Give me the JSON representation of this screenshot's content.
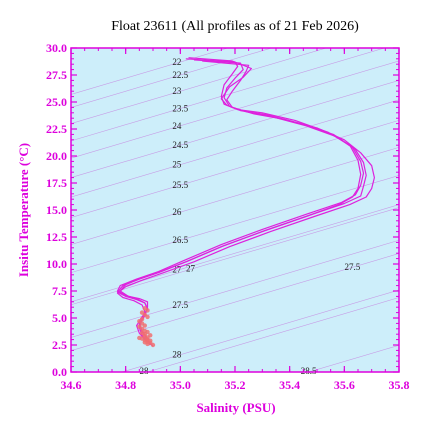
{
  "chart_data": {
    "type": "line",
    "title": "Float 23611  (All profiles as of 21 Feb 2026)",
    "xlabel": "Salinity (PSU)",
    "ylabel": "Insitu Temperature (°C)",
    "xlim": [
      34.6,
      35.8
    ],
    "ylim": [
      0.0,
      30.0
    ],
    "x_ticks": [
      "34.6",
      "34.8",
      "35.0",
      "35.2",
      "35.4",
      "35.6",
      "35.8"
    ],
    "y_ticks": [
      "0.0",
      "2.5",
      "5.0",
      "7.5",
      "10.0",
      "12.5",
      "15.0",
      "17.5",
      "20.0",
      "22.5",
      "25.0",
      "27.5",
      "30.0"
    ],
    "grid": false,
    "colors": {
      "axis": "#dd00dd",
      "plot_background": "#cdeefa",
      "profile_line": "#dd22dd",
      "deep_points": "#f07070",
      "isopycnal": "#c79ce6"
    },
    "isopycnal_labels": [
      {
        "text": "22",
        "s": 35.0,
        "t": 28.7
      },
      {
        "text": "22.5",
        "s": 35.0,
        "t": 27.5
      },
      {
        "text": "23",
        "s": 35.0,
        "t": 26.0
      },
      {
        "text": "23.5",
        "s": 35.0,
        "t": 24.4
      },
      {
        "text": "24",
        "s": 35.0,
        "t": 22.8
      },
      {
        "text": "24.5",
        "s": 35.0,
        "t": 21.0
      },
      {
        "text": "25",
        "s": 35.0,
        "t": 19.2
      },
      {
        "text": "25.5",
        "s": 35.0,
        "t": 17.3
      },
      {
        "text": "26",
        "s": 35.0,
        "t": 14.8
      },
      {
        "text": "26.5",
        "s": 35.0,
        "t": 12.2
      },
      {
        "text": "27",
        "s": 35.0,
        "t": 9.5
      },
      {
        "text": "27",
        "s": 35.05,
        "t": 9.6
      },
      {
        "text": "27.5",
        "s": 35.63,
        "t": 9.7
      },
      {
        "text": "27.5",
        "s": 35.0,
        "t": 6.2
      },
      {
        "text": "28",
        "s": 35.0,
        "t": 1.6
      },
      {
        "text": "28",
        "s": 34.88,
        "t": 0.0
      },
      {
        "text": "28.5",
        "s": 35.47,
        "t": 0.0
      }
    ],
    "series": [
      {
        "s": [
          35.02,
          35.2,
          35.21,
          35.19,
          35.16,
          35.15,
          35.16,
          35.21,
          35.3,
          35.42,
          35.54,
          35.62,
          35.65,
          35.66,
          35.65,
          35.63,
          35.58,
          35.46,
          35.3,
          35.15,
          35.02,
          34.92,
          34.85,
          34.8,
          34.78,
          34.81,
          34.85,
          34.88,
          34.88,
          34.87,
          34.85,
          34.86,
          34.88,
          34.89
        ],
        "t": [
          29.0,
          28.7,
          28.3,
          27.6,
          26.6,
          25.5,
          24.8,
          24.3,
          24.0,
          23.3,
          22.2,
          21.0,
          19.6,
          18.3,
          17.0,
          16.2,
          15.5,
          14.4,
          13.0,
          11.6,
          10.2,
          9.2,
          8.6,
          8.1,
          7.5,
          7.0,
          6.8,
          6.5,
          6.0,
          5.3,
          4.5,
          3.8,
          3.1,
          2.6
        ]
      },
      {
        "s": [
          35.05,
          35.22,
          35.23,
          35.2,
          35.17,
          35.16,
          35.18,
          35.24,
          35.34,
          35.46,
          35.57,
          35.64,
          35.67,
          35.68,
          35.67,
          35.66,
          35.6,
          35.47,
          35.31,
          35.16,
          35.03,
          34.93,
          34.85,
          34.79,
          34.77,
          34.8,
          34.84,
          34.87,
          34.88,
          34.86,
          34.84,
          34.85,
          34.87,
          34.89
        ],
        "t": [
          28.9,
          28.6,
          28.0,
          27.2,
          26.3,
          25.4,
          24.6,
          24.1,
          23.6,
          22.8,
          21.8,
          20.6,
          19.4,
          18.2,
          17.2,
          16.3,
          15.6,
          14.5,
          13.1,
          11.7,
          10.3,
          9.3,
          8.6,
          8.0,
          7.4,
          7.0,
          6.7,
          6.4,
          5.8,
          5.1,
          4.3,
          3.6,
          3.0,
          2.5
        ]
      },
      {
        "s": [
          35.08,
          35.25,
          35.24,
          35.22,
          35.19,
          35.17,
          35.19,
          35.27,
          35.38,
          35.5,
          35.6,
          35.66,
          35.7,
          35.71,
          35.7,
          35.68,
          35.62,
          35.49,
          35.33,
          35.18,
          35.05,
          34.94,
          34.86,
          34.8,
          34.77,
          34.79,
          34.83,
          34.86,
          34.87,
          34.86,
          34.85,
          34.86,
          34.88,
          34.9
        ],
        "t": [
          28.8,
          28.4,
          27.8,
          27.0,
          26.0,
          25.2,
          24.5,
          23.9,
          23.4,
          22.6,
          21.5,
          20.3,
          19.1,
          18.0,
          17.0,
          16.2,
          15.5,
          14.4,
          13.0,
          11.6,
          10.2,
          9.2,
          8.5,
          7.9,
          7.3,
          6.9,
          6.6,
          6.2,
          5.6,
          4.9,
          4.1,
          3.4,
          2.9,
          2.4
        ]
      },
      {
        "s": [
          35.03,
          35.19,
          35.26,
          35.23,
          35.18,
          35.15,
          35.17,
          35.22,
          35.32,
          35.44,
          35.56,
          35.63,
          35.66,
          35.67,
          35.66,
          35.64,
          35.59,
          35.46,
          35.3,
          35.15,
          35.02,
          34.92,
          34.84,
          34.78,
          34.77,
          34.8,
          34.84,
          34.87,
          34.88,
          34.87,
          34.85,
          34.86,
          34.88,
          34.89
        ],
        "t": [
          29.1,
          28.8,
          28.1,
          27.3,
          26.4,
          25.3,
          24.7,
          24.2,
          23.8,
          23.0,
          22.0,
          20.8,
          19.5,
          18.4,
          17.3,
          16.4,
          15.7,
          14.6,
          13.2,
          11.8,
          10.4,
          9.3,
          8.6,
          8.0,
          7.5,
          7.1,
          6.8,
          6.4,
          5.9,
          5.2,
          4.4,
          3.7,
          3.0,
          2.5
        ]
      }
    ],
    "deep_points": {
      "s": [
        34.87,
        34.88,
        34.86,
        34.87,
        34.88,
        34.86,
        34.85,
        34.86,
        34.87,
        34.85,
        34.86,
        34.87,
        34.88,
        34.86,
        34.87,
        34.89,
        34.87,
        34.88,
        34.85,
        34.86,
        34.88,
        34.87,
        34.89,
        34.88,
        34.87,
        34.89,
        34.88,
        34.9
      ],
      "t": [
        5.9,
        5.7,
        5.5,
        5.3,
        5.1,
        4.9,
        4.7,
        4.5,
        4.3,
        4.2,
        4.0,
        3.8,
        3.7,
        3.6,
        3.5,
        3.4,
        3.3,
        3.2,
        3.15,
        3.1,
        3.0,
        2.95,
        2.9,
        2.8,
        2.75,
        2.7,
        2.6,
        2.5
      ]
    }
  }
}
